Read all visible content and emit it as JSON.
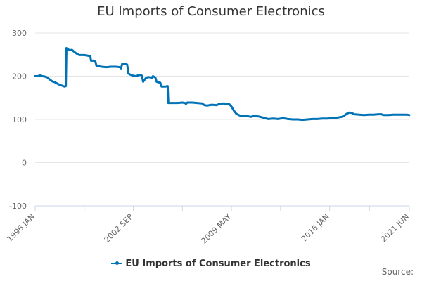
{
  "page": {
    "title": "EU Imports of Consumer Electronics"
  },
  "legend": {
    "label": "EU Imports of Consumer Electronics"
  },
  "footer": {
    "source_label": "Source:"
  },
  "colors": {
    "series": "#0073b7",
    "grid": "#e6e6e6",
    "axis": "#ccd6eb",
    "tick_text": "#666666"
  },
  "chart_data": {
    "type": "line",
    "title": "EU Imports of Consumer Electronics",
    "xlabel": "",
    "ylabel": "",
    "ylim": [
      -100,
      300
    ],
    "yticks": [
      -100,
      0,
      100,
      200,
      300
    ],
    "x_start": "1996 JAN",
    "x_end": "2021 JUN",
    "x_ticks": [
      {
        "label": "1996 JAN",
        "t": 0
      },
      {
        "label": "2002 SEP",
        "t": 80
      },
      {
        "label": "2009 MAY",
        "t": 160
      },
      {
        "label": "2016 JAN",
        "t": 240
      },
      {
        "label": "2021 JUN",
        "t": 305
      }
    ],
    "series": [
      {
        "name": "EU Imports of Consumer Electronics",
        "points": [
          [
            0,
            200
          ],
          [
            2,
            200
          ],
          [
            4,
            202
          ],
          [
            6,
            200
          ],
          [
            8,
            199
          ],
          [
            10,
            197
          ],
          [
            12,
            192
          ],
          [
            14,
            188
          ],
          [
            16,
            186
          ],
          [
            18,
            183
          ],
          [
            20,
            180
          ],
          [
            22,
            178
          ],
          [
            24,
            176
          ],
          [
            25,
            177
          ],
          [
            25.5,
            265
          ],
          [
            26,
            264
          ],
          [
            28,
            260
          ],
          [
            30,
            261
          ],
          [
            32,
            256
          ],
          [
            34,
            252
          ],
          [
            36,
            249
          ],
          [
            40,
            249
          ],
          [
            44,
            247
          ],
          [
            45,
            246
          ],
          [
            45.5,
            236
          ],
          [
            48,
            236
          ],
          [
            49,
            235
          ],
          [
            50,
            224
          ],
          [
            54,
            222
          ],
          [
            58,
            221
          ],
          [
            62,
            222
          ],
          [
            66,
            222
          ],
          [
            69,
            221
          ],
          [
            70,
            218
          ],
          [
            71,
            229
          ],
          [
            73,
            229
          ],
          [
            75,
            227
          ],
          [
            76,
            206
          ],
          [
            78,
            203
          ],
          [
            80,
            201
          ],
          [
            82,
            200
          ],
          [
            84,
            202
          ],
          [
            86,
            203
          ],
          [
            87,
            201
          ],
          [
            88,
            187
          ],
          [
            90,
            195
          ],
          [
            92,
            198
          ],
          [
            94,
            197
          ],
          [
            95,
            196
          ],
          [
            96,
            200
          ],
          [
            98,
            197
          ],
          [
            99,
            187
          ],
          [
            100,
            186
          ],
          [
            102,
            185
          ],
          [
            103,
            176
          ],
          [
            106,
            176
          ],
          [
            108,
            177
          ],
          [
            108.5,
            138
          ],
          [
            112,
            138
          ],
          [
            116,
            138
          ],
          [
            120,
            139
          ],
          [
            122,
            138
          ],
          [
            123,
            136
          ],
          [
            124,
            139
          ],
          [
            128,
            139
          ],
          [
            132,
            138
          ],
          [
            136,
            137
          ],
          [
            138,
            133
          ],
          [
            140,
            132
          ],
          [
            144,
            134
          ],
          [
            148,
            133
          ],
          [
            150,
            136
          ],
          [
            154,
            137
          ],
          [
            156,
            135
          ],
          [
            158,
            136
          ],
          [
            160,
            130
          ],
          [
            162,
            120
          ],
          [
            164,
            113
          ],
          [
            166,
            110
          ],
          [
            168,
            108
          ],
          [
            172,
            109
          ],
          [
            174,
            107
          ],
          [
            176,
            106
          ],
          [
            178,
            108
          ],
          [
            182,
            107
          ],
          [
            186,
            104
          ],
          [
            190,
            101
          ],
          [
            194,
            102
          ],
          [
            198,
            101
          ],
          [
            202,
            103
          ],
          [
            206,
            101
          ],
          [
            210,
            100
          ],
          [
            214,
            100
          ],
          [
            218,
            99
          ],
          [
            222,
            100
          ],
          [
            226,
            101
          ],
          [
            230,
            101
          ],
          [
            234,
            102
          ],
          [
            238,
            102
          ],
          [
            242,
            103
          ],
          [
            246,
            104
          ],
          [
            250,
            106
          ],
          [
            252,
            109
          ],
          [
            254,
            113
          ],
          [
            256,
            116
          ],
          [
            258,
            115
          ],
          [
            260,
            112
          ],
          [
            264,
            111
          ],
          [
            268,
            110
          ],
          [
            272,
            111
          ],
          [
            276,
            111
          ],
          [
            280,
            112
          ],
          [
            282,
            112
          ],
          [
            284,
            110
          ],
          [
            288,
            110
          ],
          [
            292,
            111
          ],
          [
            296,
            111
          ],
          [
            300,
            111
          ],
          [
            303,
            111
          ],
          [
            305,
            110
          ]
        ]
      }
    ]
  }
}
